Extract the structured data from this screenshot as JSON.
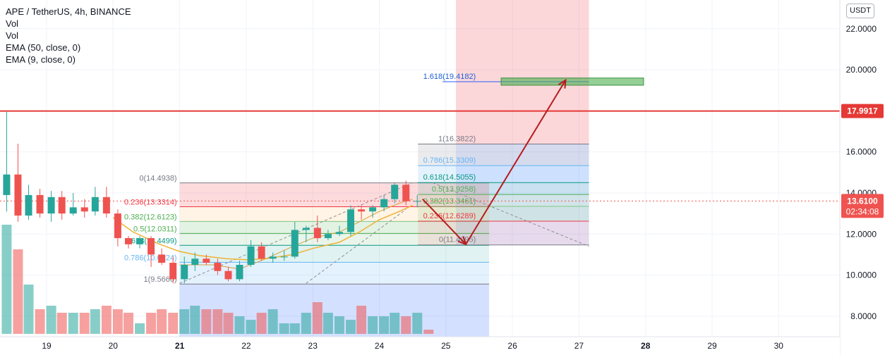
{
  "legend": {
    "symbol": "APE / TetherUS, 4h, BINANCE",
    "vol1": "Vol",
    "vol2": "Vol",
    "ema50": "EMA (50, close, 0)",
    "ema9": "EMA (9, close, 0)"
  },
  "price_axis": {
    "unit": "USDT",
    "ticks": [
      8,
      10,
      12,
      14,
      16,
      18,
      20,
      22
    ],
    "tick_labels": [
      "8.0000",
      "10.0000",
      "12.0000",
      "14.0000",
      "16.0000",
      "18.0000",
      "20.0000",
      "22.0000"
    ]
  },
  "time_axis": {
    "ticks": [
      "19",
      "20",
      "21",
      "22",
      "23",
      "24",
      "25",
      "26",
      "27",
      "28",
      "29",
      "30"
    ]
  },
  "badges": {
    "resistance": "17.9917",
    "last_price": "13.6100",
    "countdown": "02:34:08"
  },
  "colors": {
    "up": "#26a69a",
    "down": "#ef5350",
    "ema": "#f2b135",
    "resistance": "#e53935",
    "projection_arrow": "#b71c1c",
    "target_box": "#66bb6a"
  },
  "chart_data": {
    "type": "candlestick",
    "symbol": "APE / TetherUS",
    "interval": "4h",
    "exchange": "BINANCE",
    "ylim": [
      7.0,
      23.4
    ],
    "x_range_days": [
      18.3,
      30.5
    ],
    "candles": [
      {
        "t": 18.4,
        "o": 13.9,
        "h": 17.95,
        "l": 13.1,
        "c": 14.9
      },
      {
        "t": 18.57,
        "o": 14.9,
        "h": 16.4,
        "l": 12.6,
        "c": 12.9
      },
      {
        "t": 18.73,
        "o": 12.9,
        "h": 14.4,
        "l": 12.7,
        "c": 13.9
      },
      {
        "t": 18.9,
        "o": 13.9,
        "h": 14.2,
        "l": 12.8,
        "c": 13.0
      },
      {
        "t": 19.07,
        "o": 13.0,
        "h": 14.1,
        "l": 12.6,
        "c": 13.8
      },
      {
        "t": 19.23,
        "o": 13.8,
        "h": 14.1,
        "l": 12.7,
        "c": 13.0
      },
      {
        "t": 19.4,
        "o": 13.0,
        "h": 14.0,
        "l": 12.9,
        "c": 13.3
      },
      {
        "t": 19.57,
        "o": 13.3,
        "h": 13.7,
        "l": 12.8,
        "c": 13.1
      },
      {
        "t": 19.73,
        "o": 13.1,
        "h": 14.3,
        "l": 12.9,
        "c": 13.8
      },
      {
        "t": 19.9,
        "o": 13.8,
        "h": 14.3,
        "l": 12.8,
        "c": 13.0
      },
      {
        "t": 20.07,
        "o": 13.0,
        "h": 13.2,
        "l": 11.4,
        "c": 11.8
      },
      {
        "t": 20.23,
        "o": 11.8,
        "h": 11.9,
        "l": 11.3,
        "c": 11.5
      },
      {
        "t": 20.4,
        "o": 11.5,
        "h": 11.9,
        "l": 11.3,
        "c": 11.8
      },
      {
        "t": 20.57,
        "o": 11.8,
        "h": 11.9,
        "l": 10.4,
        "c": 11.0
      },
      {
        "t": 20.73,
        "o": 11.0,
        "h": 11.3,
        "l": 10.5,
        "c": 10.6
      },
      {
        "t": 20.9,
        "o": 10.6,
        "h": 10.9,
        "l": 9.6,
        "c": 9.8
      },
      {
        "t": 21.07,
        "o": 9.8,
        "h": 10.9,
        "l": 9.6,
        "c": 10.5
      },
      {
        "t": 21.23,
        "o": 10.5,
        "h": 11.1,
        "l": 10.2,
        "c": 10.8
      },
      {
        "t": 21.4,
        "o": 10.8,
        "h": 11.0,
        "l": 10.5,
        "c": 10.6
      },
      {
        "t": 21.57,
        "o": 10.6,
        "h": 10.8,
        "l": 10.0,
        "c": 10.2
      },
      {
        "t": 21.73,
        "o": 10.2,
        "h": 10.4,
        "l": 9.7,
        "c": 9.8
      },
      {
        "t": 21.9,
        "o": 9.8,
        "h": 10.7,
        "l": 9.7,
        "c": 10.5
      },
      {
        "t": 22.07,
        "o": 10.5,
        "h": 11.7,
        "l": 10.4,
        "c": 11.4
      },
      {
        "t": 22.23,
        "o": 11.4,
        "h": 11.6,
        "l": 10.7,
        "c": 10.8
      },
      {
        "t": 22.4,
        "o": 10.8,
        "h": 11.1,
        "l": 10.6,
        "c": 10.9
      },
      {
        "t": 22.57,
        "o": 10.9,
        "h": 11.2,
        "l": 10.7,
        "c": 10.9
      },
      {
        "t": 22.73,
        "o": 10.9,
        "h": 12.6,
        "l": 10.8,
        "c": 12.2
      },
      {
        "t": 22.9,
        "o": 12.2,
        "h": 12.4,
        "l": 11.6,
        "c": 12.3
      },
      {
        "t": 23.07,
        "o": 12.3,
        "h": 12.9,
        "l": 11.6,
        "c": 11.8
      },
      {
        "t": 23.23,
        "o": 11.8,
        "h": 12.2,
        "l": 11.7,
        "c": 12.0
      },
      {
        "t": 23.4,
        "o": 12.0,
        "h": 12.4,
        "l": 11.9,
        "c": 12.1
      },
      {
        "t": 23.57,
        "o": 12.1,
        "h": 13.4,
        "l": 11.9,
        "c": 13.2
      },
      {
        "t": 23.73,
        "o": 13.2,
        "h": 13.4,
        "l": 12.7,
        "c": 13.1
      },
      {
        "t": 23.9,
        "o": 13.1,
        "h": 13.4,
        "l": 12.8,
        "c": 13.3
      },
      {
        "t": 24.07,
        "o": 13.3,
        "h": 13.9,
        "l": 13.1,
        "c": 13.7
      },
      {
        "t": 24.23,
        "o": 13.7,
        "h": 14.5,
        "l": 13.5,
        "c": 14.4
      },
      {
        "t": 24.4,
        "o": 14.4,
        "h": 14.6,
        "l": 13.4,
        "c": 13.6
      },
      {
        "t": 24.57,
        "o": 13.6,
        "h": 13.9,
        "l": 13.3,
        "c": 13.61
      }
    ],
    "volume_levels": [
      3.1,
      2.4,
      1.4,
      0.7,
      0.8,
      0.6,
      0.6,
      0.6,
      0.7,
      0.8,
      0.7,
      0.6,
      0.3,
      0.6,
      0.7,
      0.6,
      0.7,
      0.8,
      0.7,
      0.7,
      0.6,
      0.5,
      0.4,
      0.6,
      0.7,
      0.3,
      0.3,
      0.6,
      0.9,
      0.6,
      0.5,
      0.4,
      0.8,
      0.5,
      0.5,
      0.6,
      0.5,
      0.6
    ],
    "ema_50": [
      [
        20.0,
        12.8
      ],
      [
        20.3,
        12.1
      ],
      [
        20.7,
        11.5
      ],
      [
        21.0,
        11.15
      ],
      [
        21.3,
        10.95
      ],
      [
        21.7,
        10.8
      ],
      [
        22.0,
        10.75
      ],
      [
        22.3,
        10.8
      ],
      [
        22.7,
        11.0
      ],
      [
        23.0,
        11.3
      ],
      [
        23.4,
        11.6
      ],
      [
        23.7,
        12.1
      ],
      [
        24.0,
        12.7
      ],
      [
        24.3,
        13.1
      ],
      [
        24.5,
        13.4
      ]
    ],
    "ema_9": [
      [
        21.0,
        10.5
      ],
      [
        21.5,
        10.5
      ],
      [
        21.9,
        10.3
      ],
      [
        22.3,
        10.8
      ],
      [
        22.7,
        11.4
      ],
      [
        23.0,
        11.8
      ],
      [
        23.4,
        12.1
      ],
      [
        23.7,
        12.6
      ],
      [
        24.0,
        13.1
      ],
      [
        24.3,
        13.5
      ],
      [
        24.5,
        13.7
      ]
    ],
    "resistance_line": 17.9917,
    "last_price": 13.61,
    "fib_retracement": {
      "x_start": 21.0,
      "x_end": 25.65,
      "levels": [
        {
          "label": "0(14.4938)",
          "value": 14.4938
        },
        {
          "label": "0.236(13.3314)",
          "value": 13.3314
        },
        {
          "label": "0.382(12.6123)",
          "value": 12.6123
        },
        {
          "label": "0.5(12.0311)",
          "value": 12.0311
        },
        {
          "label": "0.618(11.4499)",
          "value": 11.4499
        },
        {
          "label": "0.786(10.6224)",
          "value": 10.6224
        },
        {
          "label": "1(9.5666)",
          "value": 9.5666
        }
      ]
    },
    "fib_extension": {
      "x_start": 25.15,
      "x_end": 27.15,
      "levels": [
        {
          "label": "0(11.4695)",
          "value": 11.4695
        },
        {
          "label": "0.236(12.6289)",
          "value": 12.6289
        },
        {
          "label": "0.382(13.3461)",
          "value": 13.3461
        },
        {
          "label": "0.5(13.9258)",
          "value": 13.9258
        },
        {
          "label": "0.618(14.5055)",
          "value": 14.5055
        },
        {
          "label": "0.786(15.3309)",
          "value": 15.3309
        },
        {
          "label": "1(16.3822)",
          "value": 16.3822
        },
        {
          "label": "1.618(19.4182)",
          "value": 19.4182
        }
      ]
    },
    "target_zone": {
      "x_start": 25.83,
      "x_end": 27.97,
      "y_low": 19.25,
      "y_high": 19.6
    },
    "projection_path": [
      [
        24.65,
        13.7
      ],
      [
        25.3,
        11.5
      ],
      [
        26.8,
        19.5
      ]
    ],
    "long_position": {
      "x_start": 25.15,
      "x_end": 27.15,
      "entry": 11.47,
      "target": 23.4
    }
  }
}
